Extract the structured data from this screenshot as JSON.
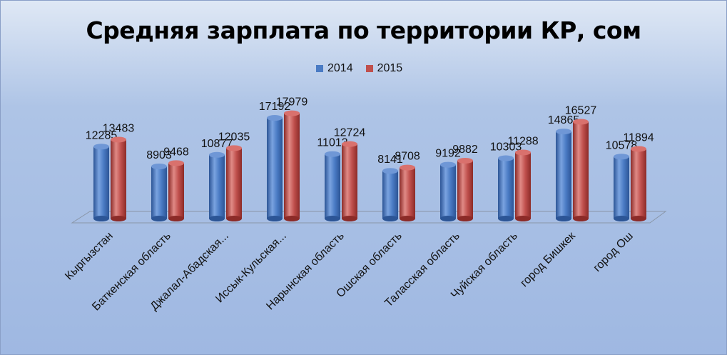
{
  "chart_data": {
    "type": "bar",
    "title": "Средняя зарплата по территории КР, сом",
    "categories": [
      "Кыргызстан",
      "Баткенская область",
      "Джалал-Абадская...",
      "Иссык-Кульская...",
      "Нарынская область",
      "Ошская область",
      "Таласская область",
      "Чуйская область",
      "город Бишкек",
      "город Ош"
    ],
    "series": [
      {
        "name": "2014",
        "values": [
          12285,
          8903,
          10877,
          17192,
          11013,
          8141,
          9192,
          10303,
          14865,
          10578
        ],
        "color": "#4a7bc4"
      },
      {
        "name": "2015",
        "values": [
          13483,
          9468,
          12035,
          17979,
          12724,
          8708,
          9882,
          11288,
          16527,
          11894
        ],
        "color": "#c0504d"
      }
    ],
    "ylim": [
      0,
      20000
    ],
    "grid": false,
    "legend_position": "top-center",
    "data_labels": true
  }
}
